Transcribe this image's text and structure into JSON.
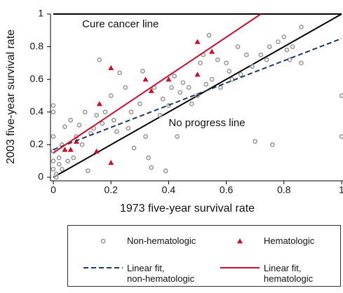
{
  "chart_data": {
    "type": "scatter",
    "xlabel": "1973 five-year survival rate",
    "ylabel": "2003 five-year survival rate",
    "xlim": [
      0,
      1
    ],
    "ylim": [
      0,
      1
    ],
    "xticks": [
      0,
      0.2,
      0.4,
      0.6,
      0.8,
      1
    ],
    "yticks": [
      0,
      0.2,
      0.4,
      0.6,
      0.8,
      1
    ],
    "annotations": [
      {
        "text": "Cure cancer line",
        "x": 0.1,
        "y": 0.935
      },
      {
        "text": "No progress line",
        "x": 0.4,
        "y": 0.33
      }
    ],
    "series": [
      {
        "name": "Non-hematologic",
        "color": "#9a9a9a",
        "marker": "circle",
        "x": [
          0,
          0,
          0,
          0,
          0,
          0,
          0.01,
          0.01,
          0.02,
          0.02,
          0.03,
          0.03,
          0.04,
          0.05,
          0.06,
          0.07,
          0.08,
          0.09,
          0.1,
          0.11,
          0.12,
          0.13,
          0.14,
          0.15,
          0.16,
          0.17,
          0.18,
          0.2,
          0.21,
          0.22,
          0.23,
          0.25,
          0.26,
          0.27,
          0.28,
          0.3,
          0.31,
          0.32,
          0.33,
          0.34,
          0.35,
          0.37,
          0.38,
          0.39,
          0.4,
          0.41,
          0.42,
          0.43,
          0.44,
          0.45,
          0.47,
          0.48,
          0.5,
          0.51,
          0.52,
          0.53,
          0.54,
          0.55,
          0.57,
          0.58,
          0.6,
          0.61,
          0.62,
          0.64,
          0.65,
          0.67,
          0.69,
          0.7,
          0.72,
          0.74,
          0.75,
          0.76,
          0.78,
          0.8,
          0.81,
          0.82,
          0.83,
          0.86,
          0.86,
          1.0,
          1.0
        ],
        "y": [
          0.44,
          0.4,
          0.25,
          0.16,
          0.1,
          0.05,
          0.02,
          0,
          0.08,
          0.12,
          0.2,
          0.05,
          0.31,
          0.1,
          0.35,
          0.12,
          0.25,
          0.32,
          0.2,
          0.4,
          0.04,
          0.27,
          0.3,
          0.38,
          0.72,
          0.33,
          0.4,
          0.5,
          0.35,
          0.28,
          0.64,
          0.55,
          0.3,
          0.4,
          0.18,
          0.45,
          0.65,
          0.25,
          0.12,
          0.06,
          0.55,
          0.38,
          0.48,
          0.04,
          0.44,
          0.55,
          0.62,
          0.25,
          0.52,
          0.58,
          0.55,
          0.45,
          0.5,
          0.7,
          0.75,
          0.57,
          0.87,
          0.6,
          0.72,
          0.55,
          0.7,
          0.65,
          0.6,
          0.8,
          0.63,
          0.75,
          0.68,
          0.22,
          0.75,
          0.72,
          0.8,
          0.2,
          0.83,
          0.86,
          0.78,
          0.72,
          0.8,
          0.92,
          0.7,
          0.5,
          0.25
        ]
      },
      {
        "name": "Hematologic",
        "color": "#c8102e",
        "marker": "triangle",
        "x": [
          0.04,
          0.06,
          0.08,
          0.15,
          0.16,
          0.2,
          0.2,
          0.32,
          0.34,
          0.4,
          0.5,
          0.5,
          0.55
        ],
        "y": [
          0.17,
          0.17,
          0.22,
          0.16,
          0.45,
          0.67,
          0.09,
          0.6,
          0.53,
          0.6,
          0.83,
          0.63,
          0.77
        ]
      },
      {
        "name": "Linear fit,\nnon-hematologic",
        "color": "#1f3864",
        "marker": "dashed",
        "x": [
          0,
          1
        ],
        "y": [
          0.17,
          0.85
        ]
      },
      {
        "name": "Linear fit,\nhematologic",
        "color": "#c8102e",
        "marker": "line",
        "x": [
          0,
          0.72
        ],
        "y": [
          0.15,
          1
        ]
      }
    ],
    "reference_lines": [
      {
        "color": "#000000",
        "x": [
          0,
          1
        ],
        "y": [
          1,
          1
        ]
      },
      {
        "color": "#000000",
        "x": [
          0,
          1
        ],
        "y": [
          0,
          1
        ]
      }
    ]
  }
}
